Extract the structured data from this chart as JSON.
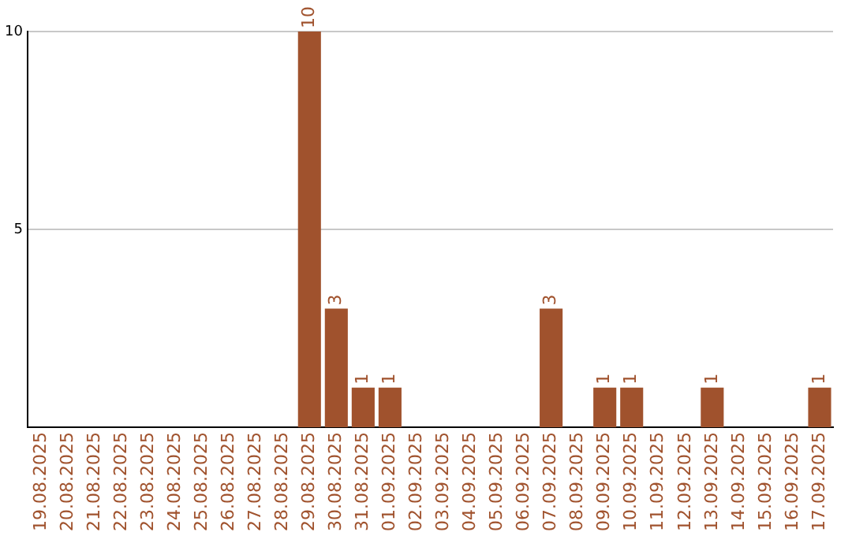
{
  "chart_data": {
    "type": "bar",
    "categories": [
      "19.08.2025",
      "20.08.2025",
      "21.08.2025",
      "22.08.2025",
      "23.08.2025",
      "24.08.2025",
      "25.08.2025",
      "26.08.2025",
      "27.08.2025",
      "28.08.2025",
      "29.08.2025",
      "30.08.2025",
      "31.08.2025",
      "01.09.2025",
      "02.09.2025",
      "03.09.2025",
      "04.09.2025",
      "05.09.2025",
      "06.09.2025",
      "07.09.2025",
      "08.09.2025",
      "09.09.2025",
      "10.09.2025",
      "11.09.2025",
      "12.09.2025",
      "13.09.2025",
      "14.09.2025",
      "15.09.2025",
      "16.09.2025",
      "17.09.2025"
    ],
    "values": [
      0,
      0,
      0,
      0,
      0,
      0,
      0,
      0,
      0,
      0,
      10,
      3,
      1,
      1,
      0,
      0,
      0,
      0,
      0,
      3,
      0,
      1,
      1,
      0,
      0,
      1,
      0,
      0,
      0,
      1
    ],
    "value_labels": [
      null,
      null,
      null,
      null,
      null,
      null,
      null,
      null,
      null,
      null,
      "10",
      "3",
      "1",
      "1",
      null,
      null,
      null,
      null,
      null,
      "3",
      null,
      "1",
      "1",
      null,
      null,
      "1",
      null,
      null,
      null,
      "1"
    ],
    "color": "#a0522d",
    "ylim": [
      0,
      10
    ],
    "yticks": [
      5,
      10
    ],
    "grid": "y",
    "legend": false
  }
}
